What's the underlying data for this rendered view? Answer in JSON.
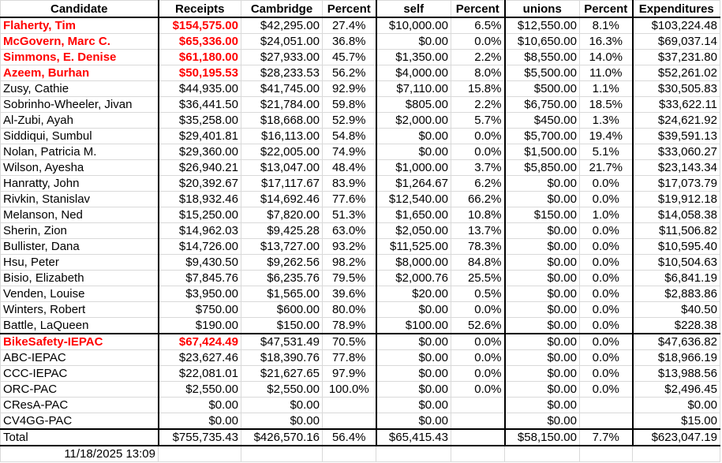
{
  "headers": [
    "Candidate",
    "Receipts",
    "Cambridge",
    "Percent",
    "self",
    "Percent",
    "unions",
    "Percent",
    "Expenditures"
  ],
  "candidates": [
    {
      "name": "Flaherty, Tim",
      "receipts": "$154,575.00",
      "cambridge": "$42,295.00",
      "cam_pct": "27.4%",
      "self": "$10,000.00",
      "self_pct": "6.5%",
      "unions": "$12,550.00",
      "unions_pct": "8.1%",
      "expenditures": "$103,224.48",
      "highlight": true
    },
    {
      "name": "McGovern, Marc C.",
      "receipts": "$65,336.00",
      "cambridge": "$24,051.00",
      "cam_pct": "36.8%",
      "self": "$0.00",
      "self_pct": "0.0%",
      "unions": "$10,650.00",
      "unions_pct": "16.3%",
      "expenditures": "$69,037.14",
      "highlight": true
    },
    {
      "name": "Simmons, E. Denise",
      "receipts": "$61,180.00",
      "cambridge": "$27,933.00",
      "cam_pct": "45.7%",
      "self": "$1,350.00",
      "self_pct": "2.2%",
      "unions": "$8,550.00",
      "unions_pct": "14.0%",
      "expenditures": "$37,231.80",
      "highlight": true
    },
    {
      "name": "Azeem, Burhan",
      "receipts": "$50,195.53",
      "cambridge": "$28,233.53",
      "cam_pct": "56.2%",
      "self": "$4,000.00",
      "self_pct": "8.0%",
      "unions": "$5,500.00",
      "unions_pct": "11.0%",
      "expenditures": "$52,261.02",
      "highlight": true
    },
    {
      "name": "Zusy, Cathie",
      "receipts": "$44,935.00",
      "cambridge": "$41,745.00",
      "cam_pct": "92.9%",
      "self": "$7,110.00",
      "self_pct": "15.8%",
      "unions": "$500.00",
      "unions_pct": "1.1%",
      "expenditures": "$30,505.83"
    },
    {
      "name": "Sobrinho-Wheeler, Jivan",
      "receipts": "$36,441.50",
      "cambridge": "$21,784.00",
      "cam_pct": "59.8%",
      "self": "$805.00",
      "self_pct": "2.2%",
      "unions": "$6,750.00",
      "unions_pct": "18.5%",
      "expenditures": "$33,622.11"
    },
    {
      "name": "Al-Zubi, Ayah",
      "receipts": "$35,258.00",
      "cambridge": "$18,668.00",
      "cam_pct": "52.9%",
      "self": "$2,000.00",
      "self_pct": "5.7%",
      "unions": "$450.00",
      "unions_pct": "1.3%",
      "expenditures": "$24,621.92"
    },
    {
      "name": "Siddiqui, Sumbul",
      "receipts": "$29,401.81",
      "cambridge": "$16,113.00",
      "cam_pct": "54.8%",
      "self": "$0.00",
      "self_pct": "0.0%",
      "unions": "$5,700.00",
      "unions_pct": "19.4%",
      "expenditures": "$39,591.13"
    },
    {
      "name": "Nolan, Patricia M.",
      "receipts": "$29,360.00",
      "cambridge": "$22,005.00",
      "cam_pct": "74.9%",
      "self": "$0.00",
      "self_pct": "0.0%",
      "unions": "$1,500.00",
      "unions_pct": "5.1%",
      "expenditures": "$33,060.27"
    },
    {
      "name": "Wilson, Ayesha",
      "receipts": "$26,940.21",
      "cambridge": "$13,047.00",
      "cam_pct": "48.4%",
      "self": "$1,000.00",
      "self_pct": "3.7%",
      "unions": "$5,850.00",
      "unions_pct": "21.7%",
      "expenditures": "$23,143.34"
    },
    {
      "name": "Hanratty, John",
      "receipts": "$20,392.67",
      "cambridge": "$17,117.67",
      "cam_pct": "83.9%",
      "self": "$1,264.67",
      "self_pct": "6.2%",
      "unions": "$0.00",
      "unions_pct": "0.0%",
      "expenditures": "$17,073.79"
    },
    {
      "name": "Rivkin, Stanislav",
      "receipts": "$18,932.46",
      "cambridge": "$14,692.46",
      "cam_pct": "77.6%",
      "self": "$12,540.00",
      "self_pct": "66.2%",
      "unions": "$0.00",
      "unions_pct": "0.0%",
      "expenditures": "$19,912.18"
    },
    {
      "name": "Melanson, Ned",
      "receipts": "$15,250.00",
      "cambridge": "$7,820.00",
      "cam_pct": "51.3%",
      "self": "$1,650.00",
      "self_pct": "10.8%",
      "unions": "$150.00",
      "unions_pct": "1.0%",
      "expenditures": "$14,058.38"
    },
    {
      "name": "Sherin, Zion",
      "receipts": "$14,962.03",
      "cambridge": "$9,425.28",
      "cam_pct": "63.0%",
      "self": "$2,050.00",
      "self_pct": "13.7%",
      "unions": "$0.00",
      "unions_pct": "0.0%",
      "expenditures": "$11,506.82"
    },
    {
      "name": "Bullister, Dana",
      "receipts": "$14,726.00",
      "cambridge": "$13,727.00",
      "cam_pct": "93.2%",
      "self": "$11,525.00",
      "self_pct": "78.3%",
      "unions": "$0.00",
      "unions_pct": "0.0%",
      "expenditures": "$10,595.40"
    },
    {
      "name": "Hsu, Peter",
      "receipts": "$9,430.50",
      "cambridge": "$9,262.56",
      "cam_pct": "98.2%",
      "self": "$8,000.00",
      "self_pct": "84.8%",
      "unions": "$0.00",
      "unions_pct": "0.0%",
      "expenditures": "$10,504.63"
    },
    {
      "name": "Bisio, Elizabeth",
      "receipts": "$7,845.76",
      "cambridge": "$6,235.76",
      "cam_pct": "79.5%",
      "self": "$2,000.76",
      "self_pct": "25.5%",
      "unions": "$0.00",
      "unions_pct": "0.0%",
      "expenditures": "$6,841.19"
    },
    {
      "name": "Venden, Louise",
      "receipts": "$3,950.00",
      "cambridge": "$1,565.00",
      "cam_pct": "39.6%",
      "self": "$20.00",
      "self_pct": "0.5%",
      "unions": "$0.00",
      "unions_pct": "0.0%",
      "expenditures": "$2,883.86"
    },
    {
      "name": "Winters, Robert",
      "receipts": "$750.00",
      "cambridge": "$600.00",
      "cam_pct": "80.0%",
      "self": "$0.00",
      "self_pct": "0.0%",
      "unions": "$0.00",
      "unions_pct": "0.0%",
      "expenditures": "$40.50"
    },
    {
      "name": "Battle, LaQueen",
      "receipts": "$190.00",
      "cambridge": "$150.00",
      "cam_pct": "78.9%",
      "self": "$100.00",
      "self_pct": "52.6%",
      "unions": "$0.00",
      "unions_pct": "0.0%",
      "expenditures": "$228.38"
    }
  ],
  "pacs": [
    {
      "name": "BikeSafety-IEPAC",
      "receipts": "$67,424.49",
      "cambridge": "$47,531.49",
      "cam_pct": "70.5%",
      "self": "$0.00",
      "self_pct": "0.0%",
      "unions": "$0.00",
      "unions_pct": "0.0%",
      "expenditures": "$47,636.82",
      "highlight": true
    },
    {
      "name": "ABC-IEPAC",
      "receipts": "$23,627.46",
      "cambridge": "$18,390.76",
      "cam_pct": "77.8%",
      "self": "$0.00",
      "self_pct": "0.0%",
      "unions": "$0.00",
      "unions_pct": "0.0%",
      "expenditures": "$18,966.19"
    },
    {
      "name": "CCC-IEPAC",
      "receipts": "$22,081.01",
      "cambridge": "$21,627.65",
      "cam_pct": "97.9%",
      "self": "$0.00",
      "self_pct": "0.0%",
      "unions": "$0.00",
      "unions_pct": "0.0%",
      "expenditures": "$13,988.56"
    },
    {
      "name": "ORC-PAC",
      "receipts": "$2,550.00",
      "cambridge": "$2,550.00",
      "cam_pct": "100.0%",
      "self": "$0.00",
      "self_pct": "0.0%",
      "unions": "$0.00",
      "unions_pct": "0.0%",
      "expenditures": "$2,496.45"
    },
    {
      "name": "CResA-PAC",
      "receipts": "$0.00",
      "cambridge": "$0.00",
      "cam_pct": "",
      "self": "$0.00",
      "self_pct": "",
      "unions": "$0.00",
      "unions_pct": "",
      "expenditures": "$0.00"
    },
    {
      "name": "CV4GG-PAC",
      "receipts": "$0.00",
      "cambridge": "$0.00",
      "cam_pct": "",
      "self": "$0.00",
      "self_pct": "",
      "unions": "$0.00",
      "unions_pct": "",
      "expenditures": "$15.00"
    }
  ],
  "total": {
    "name": "Total",
    "receipts": "$755,735.43",
    "cambridge": "$426,570.16",
    "cam_pct": "56.4%",
    "self": "$65,415.43",
    "self_pct": "",
    "unions": "$58,150.00",
    "unions_pct": "7.7%",
    "expenditures": "$623,047.19"
  },
  "timestamp": "11/18/2025 13:09",
  "colors": {
    "highlight": "#ff0000",
    "grid": "#d9d9d9",
    "border": "#000000"
  }
}
